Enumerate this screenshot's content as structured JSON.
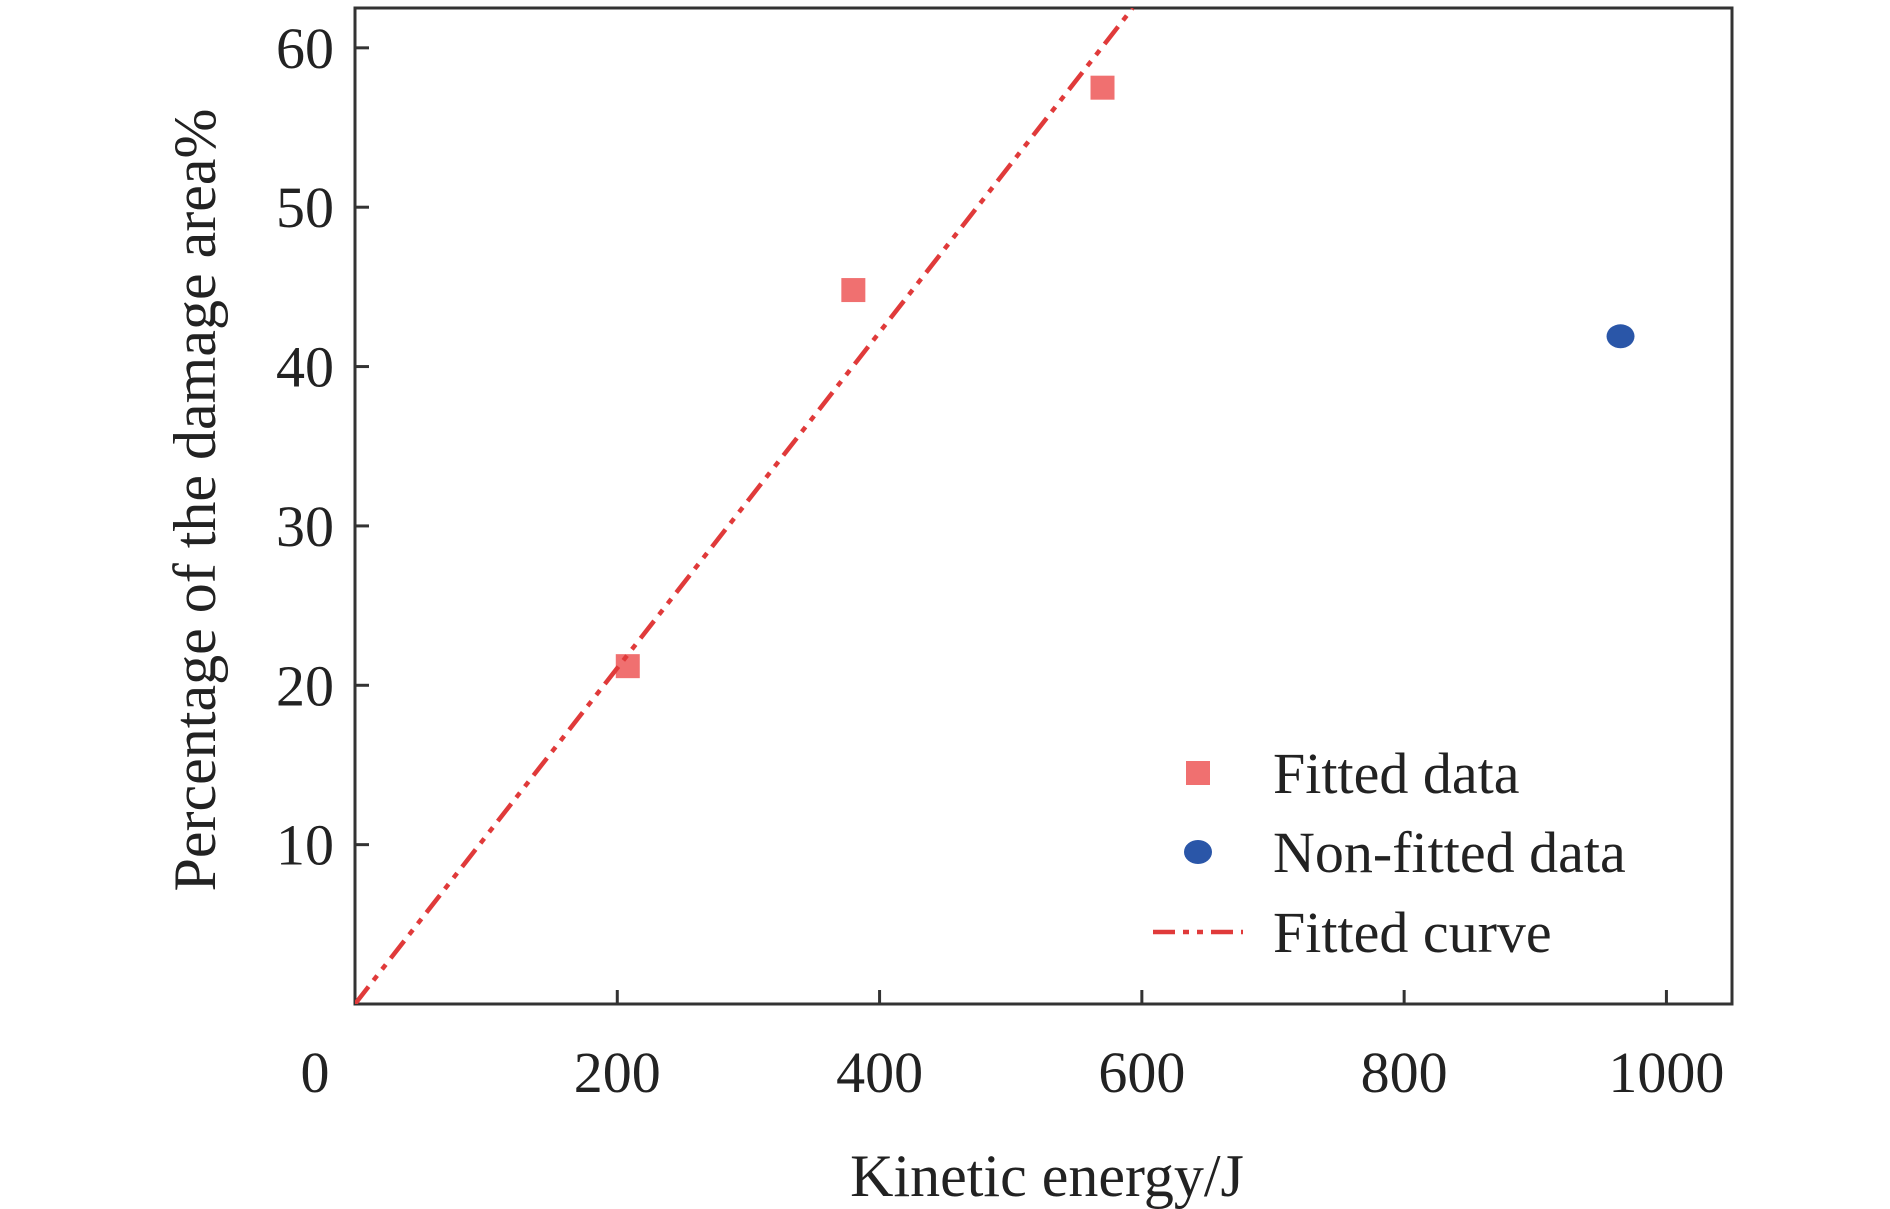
{
  "chart_data": {
    "type": "scatter",
    "title": "",
    "xlabel": "Kinetic energy/J",
    "ylabel": "Percentage of the damage area%",
    "xlim": [
      0,
      1050
    ],
    "ylim": [
      0,
      62.5
    ],
    "x_ticks": [
      0,
      200,
      400,
      600,
      800,
      1000
    ],
    "x_tick_labels": [
      "0",
      "200",
      "400",
      "600",
      "800",
      "1000"
    ],
    "y_ticks": [
      10,
      20,
      30,
      40,
      50,
      60
    ],
    "y_tick_labels": [
      "10",
      "20",
      "30",
      "40",
      "50",
      "60"
    ],
    "grid": false,
    "legend_position": "bottom-right",
    "series": [
      {
        "name": "Fitted data",
        "kind": "scatter",
        "marker": "square",
        "color": "#f07070",
        "x": [
          208,
          380,
          570
        ],
        "y": [
          21.2,
          44.8,
          57.5
        ]
      },
      {
        "name": "Non-fitted data",
        "kind": "scatter",
        "marker": "circle",
        "color": "#2a56a8",
        "x": [
          965
        ],
        "y": [
          41.9
        ]
      },
      {
        "name": "Fitted curve",
        "kind": "line",
        "style": "dash-dot-dot",
        "color": "#e03a3a",
        "x": [
          0,
          593
        ],
        "y": [
          0,
          62.5
        ]
      }
    ]
  }
}
